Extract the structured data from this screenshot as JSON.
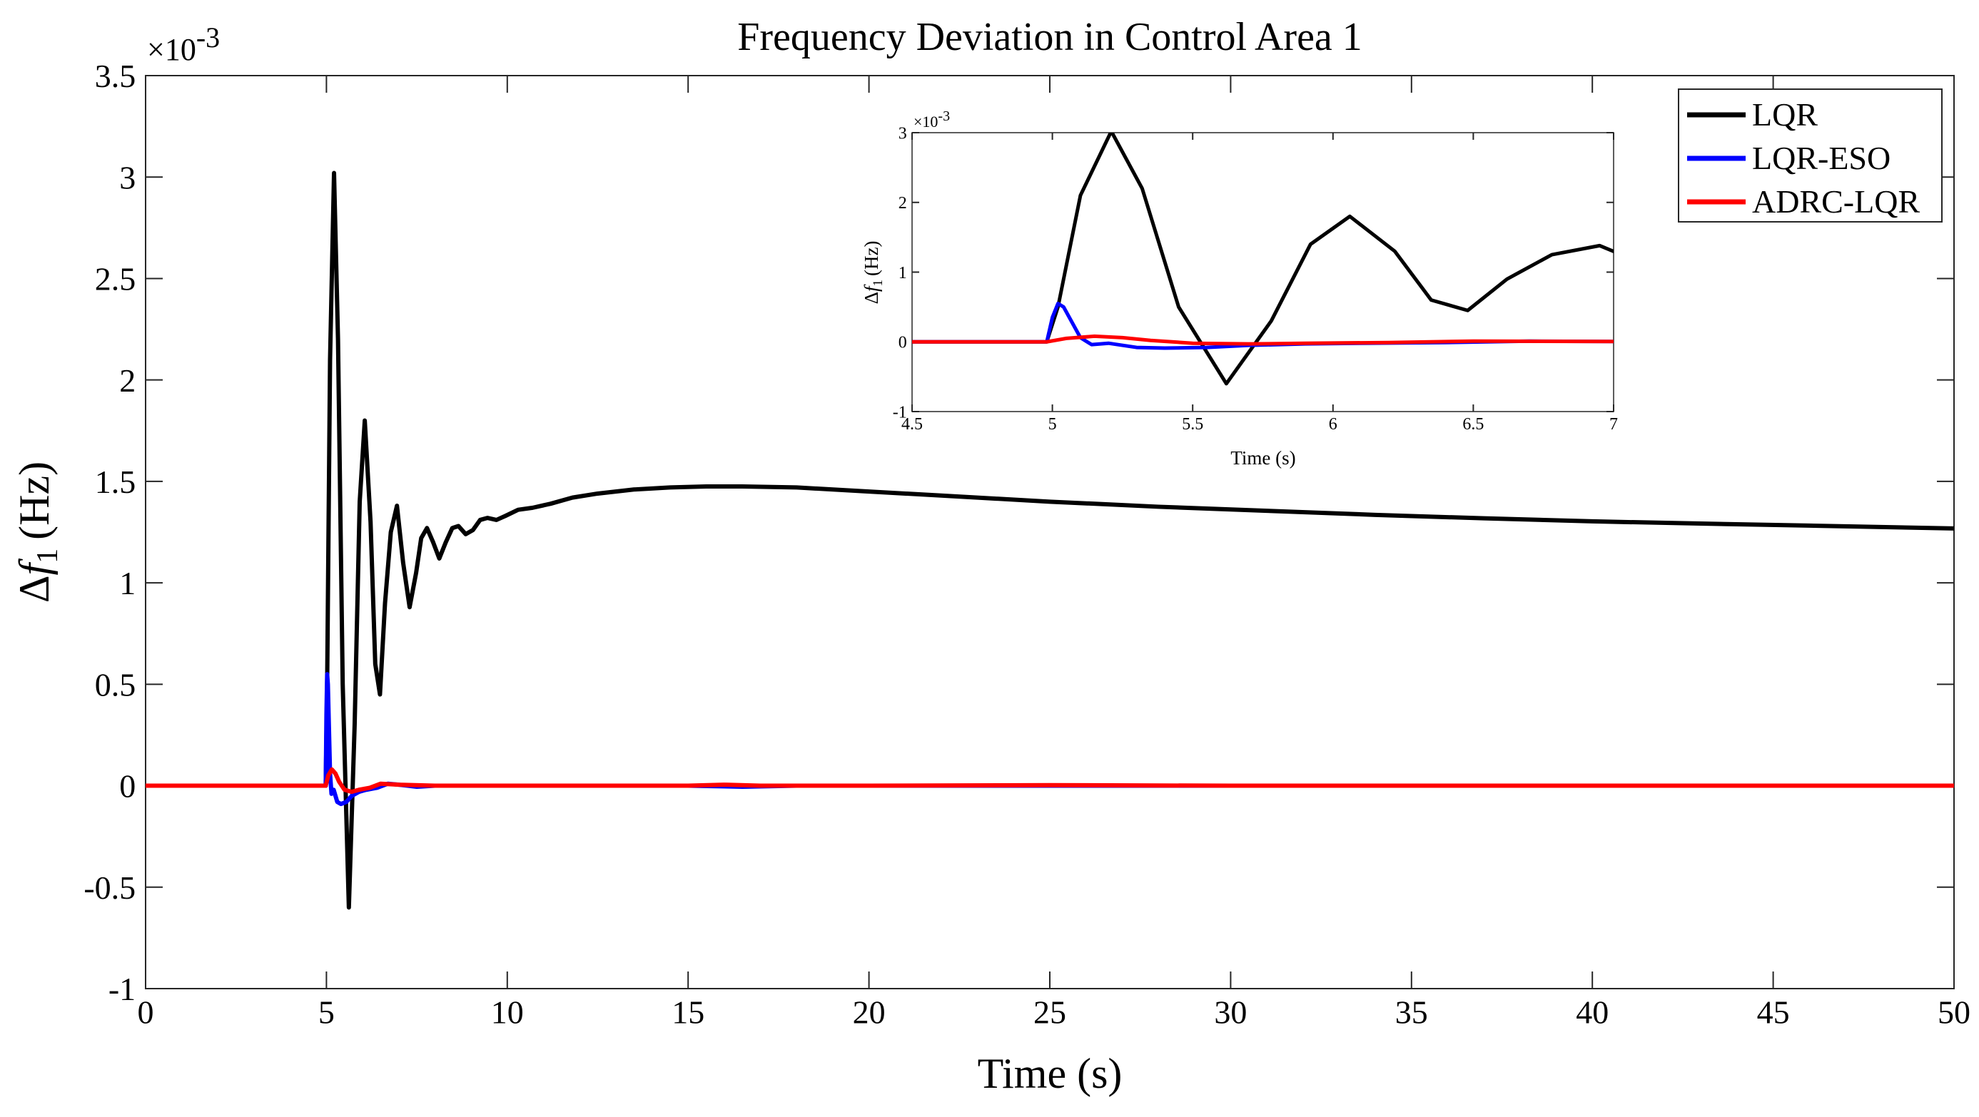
{
  "chart_data": {
    "type": "line",
    "title": "Frequency Deviation in Control Area 1",
    "xlabel": "Time (s)",
    "ylabel": {
      "delta": "Δ",
      "var": "f",
      "sub": "1",
      "unit": "(Hz)"
    },
    "y_multiplier": {
      "base": "×10",
      "exp": "-3"
    },
    "xlim": [
      0,
      50
    ],
    "ylim": [
      -1,
      3.5
    ],
    "xticks": [
      0,
      5,
      10,
      15,
      20,
      25,
      30,
      35,
      40,
      45,
      50
    ],
    "xtick_labels": [
      "0",
      "5",
      "10",
      "15",
      "20",
      "25",
      "30",
      "35",
      "40",
      "45",
      "50"
    ],
    "yticks": [
      -1,
      -0.5,
      0,
      0.5,
      1,
      1.5,
      2,
      2.5,
      3,
      3.5
    ],
    "ytick_labels": [
      "-1",
      "-0.5",
      "0",
      "0.5",
      "1",
      "1.5",
      "2",
      "2.5",
      "3",
      "3.5"
    ],
    "legend_position": "top-right",
    "series": [
      {
        "name": "LQR",
        "color": "#000000",
        "x": [
          0,
          4.98,
          5.02,
          5.1,
          5.21,
          5.32,
          5.45,
          5.62,
          5.78,
          5.92,
          6.06,
          6.22,
          6.35,
          6.48,
          6.62,
          6.78,
          6.95,
          7.12,
          7.3,
          7.48,
          7.62,
          7.78,
          7.95,
          8.12,
          8.3,
          8.48,
          8.65,
          8.85,
          9.05,
          9.25,
          9.45,
          9.7,
          9.95,
          10.3,
          10.7,
          11.2,
          11.8,
          12.5,
          13.5,
          14.5,
          15.5,
          16.5,
          18,
          20,
          22,
          25,
          28,
          31,
          34,
          37,
          40,
          43,
          46,
          50
        ],
        "y": [
          0,
          0,
          0.5,
          2.1,
          3.02,
          2.2,
          0.5,
          -0.6,
          0.3,
          1.4,
          1.8,
          1.3,
          0.6,
          0.45,
          0.9,
          1.25,
          1.38,
          1.1,
          0.88,
          1.05,
          1.22,
          1.27,
          1.2,
          1.12,
          1.2,
          1.27,
          1.28,
          1.24,
          1.26,
          1.31,
          1.32,
          1.31,
          1.33,
          1.36,
          1.37,
          1.39,
          1.42,
          1.44,
          1.46,
          1.47,
          1.475,
          1.475,
          1.47,
          1.45,
          1.43,
          1.4,
          1.375,
          1.355,
          1.335,
          1.318,
          1.303,
          1.292,
          1.282,
          1.268
        ]
      },
      {
        "name": "LQR-ESO",
        "color": "#0000ff",
        "x": [
          0,
          4.98,
          5.0,
          5.02,
          5.04,
          5.07,
          5.1,
          5.14,
          5.2,
          5.3,
          5.4,
          5.55,
          5.7,
          5.9,
          6.1,
          6.4,
          6.7,
          7.0,
          7.5,
          8.0,
          10,
          15,
          16.5,
          18,
          25,
          30,
          40,
          50
        ],
        "y": [
          0,
          0,
          0.35,
          0.55,
          0.5,
          0.28,
          0.06,
          -0.04,
          -0.02,
          -0.08,
          -0.09,
          -0.08,
          -0.05,
          -0.03,
          -0.02,
          -0.01,
          0.01,
          0.005,
          -0.005,
          0,
          0,
          0,
          -0.005,
          0,
          0,
          0,
          0,
          0
        ]
      },
      {
        "name": "ADRC-LQR",
        "color": "#ff0000",
        "x": [
          0,
          4.98,
          5.05,
          5.15,
          5.25,
          5.35,
          5.5,
          5.7,
          5.9,
          6.2,
          6.5,
          7.0,
          8.0,
          10,
          15,
          16,
          17,
          20,
          25,
          30,
          40,
          50
        ],
        "y": [
          0,
          0,
          0.05,
          0.08,
          0.06,
          0.02,
          -0.02,
          -0.03,
          -0.02,
          -0.01,
          0.01,
          0.005,
          0,
          0,
          0,
          0.005,
          0,
          0,
          0.003,
          0,
          0,
          0
        ]
      }
    ],
    "inset": {
      "xlabel": "Time (s)",
      "ylabel": {
        "delta": "Δ",
        "var": "f",
        "sub": "1",
        "unit": "(Hz)"
      },
      "y_multiplier": {
        "base": "×10",
        "exp": "-3"
      },
      "xlim": [
        4.5,
        7
      ],
      "ylim": [
        -1,
        3
      ],
      "xticks": [
        4.5,
        5,
        5.5,
        6,
        6.5,
        7
      ],
      "xtick_labels": [
        "4.5",
        "5",
        "5.5",
        "6",
        "6.5",
        "7"
      ],
      "yticks": [
        -1,
        0,
        1,
        2,
        3
      ],
      "ytick_labels": [
        "-1",
        "0",
        "1",
        "2",
        "3"
      ]
    }
  }
}
